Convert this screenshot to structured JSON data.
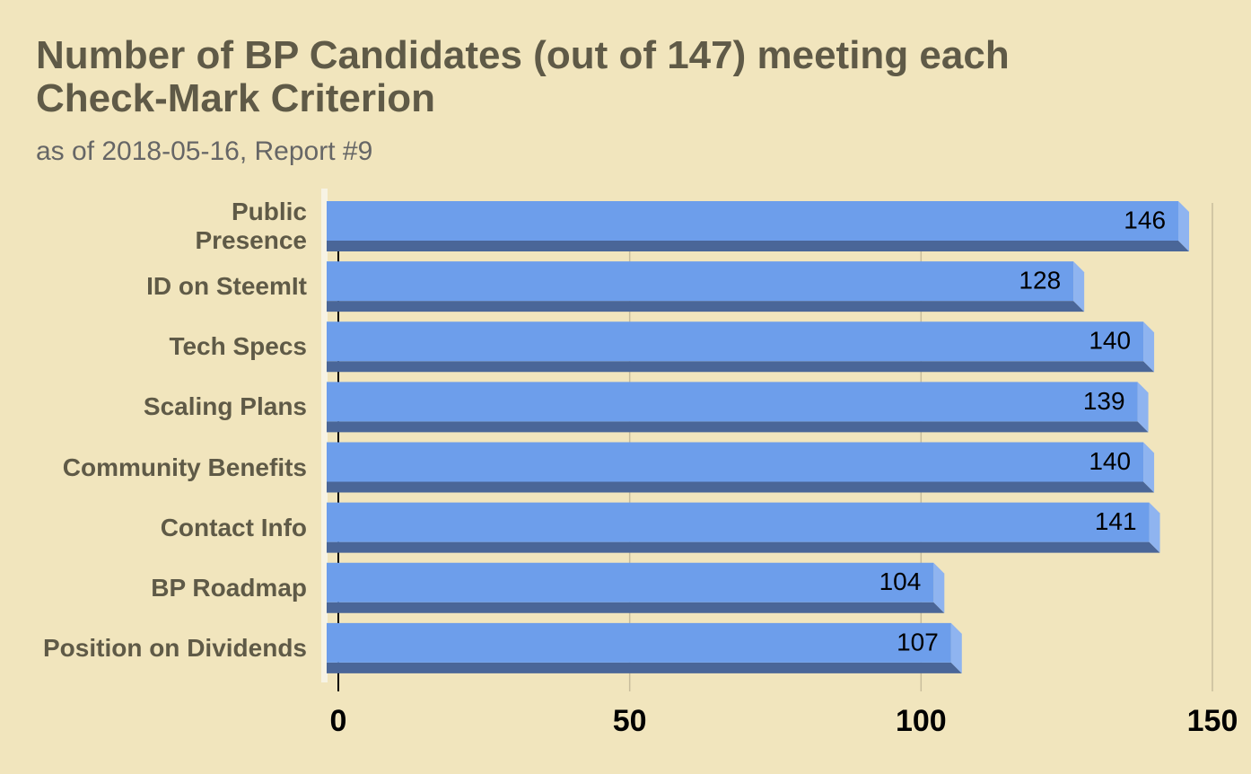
{
  "chart_data": {
    "type": "bar",
    "orientation": "horizontal",
    "title": "Number of BP Candidates (out of 147) meeting each Check-Mark Criterion",
    "subtitle": "as of 2018-05-16, Report #9",
    "categories": [
      "Public\nPresence",
      "ID on SteemIt",
      "Tech Specs",
      "Scaling Plans",
      "Community Benefits",
      "Contact Info",
      "BP Roadmap",
      "Position on Dividends"
    ],
    "values": [
      146,
      128,
      140,
      139,
      140,
      141,
      104,
      107
    ],
    "color": "#6d9eeb",
    "xlim": [
      0,
      150
    ],
    "xticks": [
      0,
      50,
      100,
      150
    ],
    "grid": true
  }
}
